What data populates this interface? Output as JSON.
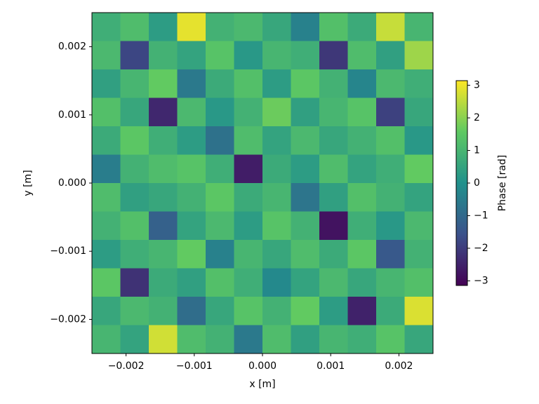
{
  "chart_data": {
    "type": "heatmap",
    "xlabel": "x [m]",
    "ylabel": "y [m]",
    "colorbar_label": "Phase [rad]",
    "colormap": "viridis",
    "xlim": [
      -0.0025,
      0.0025
    ],
    "ylim": [
      -0.0025,
      0.0025
    ],
    "xticks": [
      {
        "value": -0.002,
        "label": "−0.002"
      },
      {
        "value": -0.001,
        "label": "−0.001"
      },
      {
        "value": 0,
        "label": "0.000"
      },
      0.001,
      0.002
    ],
    "yticks": [
      {
        "value": -0.002,
        "label": "−0.002"
      },
      {
        "value": -0.001,
        "label": "−0.001"
      },
      {
        "value": 0,
        "label": "0.000"
      },
      0.001,
      0.002
    ],
    "clim": [
      -3.14159,
      3.14159
    ],
    "cticks": [
      {
        "value": -3,
        "label": "−3"
      },
      {
        "value": -2,
        "label": "−2"
      },
      {
        "value": -1,
        "label": "−1"
      },
      0,
      1,
      2,
      3
    ],
    "z": [
      [
        0.8,
        1.2,
        0.3,
        2.9,
        0.9,
        1.1,
        0.6,
        -0.4,
        1.3,
        0.7,
        2.6,
        1.0
      ],
      [
        1.1,
        -1.8,
        0.9,
        0.5,
        1.4,
        0.2,
        1.0,
        0.8,
        -2.1,
        1.2,
        0.4,
        2.2
      ],
      [
        0.4,
        1.0,
        1.6,
        -0.6,
        0.7,
        1.3,
        0.3,
        1.5,
        0.9,
        -0.3,
        1.1,
        0.8
      ],
      [
        1.3,
        0.6,
        -2.4,
        1.1,
        0.2,
        0.9,
        1.7,
        0.4,
        1.0,
        1.4,
        -1.9,
        0.6
      ],
      [
        0.7,
        1.5,
        0.8,
        0.3,
        -0.8,
        1.2,
        0.5,
        1.1,
        0.6,
        0.9,
        1.3,
        0.2
      ],
      [
        -0.5,
        0.9,
        1.2,
        1.4,
        0.8,
        -2.6,
        0.7,
        0.3,
        1.2,
        0.5,
        0.8,
        1.6
      ],
      [
        1.2,
        0.4,
        0.6,
        0.9,
        1.5,
        0.7,
        1.0,
        -0.7,
        0.4,
        1.3,
        0.9,
        0.5
      ],
      [
        0.9,
        1.3,
        -1.2,
        0.5,
        1.1,
        0.3,
        1.4,
        0.9,
        -2.8,
        0.8,
        0.2,
        1.1
      ],
      [
        0.3,
        0.8,
        1.0,
        1.6,
        -0.4,
        1.0,
        0.6,
        1.2,
        0.7,
        1.5,
        -1.4,
        0.9
      ],
      [
        1.5,
        -2.2,
        0.7,
        0.4,
        1.3,
        0.8,
        -0.2,
        0.5,
        1.1,
        0.6,
        1.0,
        1.3
      ],
      [
        0.6,
        1.1,
        0.9,
        -0.9,
        0.6,
        1.4,
        0.9,
        1.6,
        0.3,
        -2.5,
        0.7,
        2.8
      ],
      [
        1.0,
        0.5,
        2.7,
        1.2,
        0.9,
        -0.6,
        1.2,
        0.4,
        1.0,
        0.8,
        1.4,
        0.6
      ]
    ]
  }
}
